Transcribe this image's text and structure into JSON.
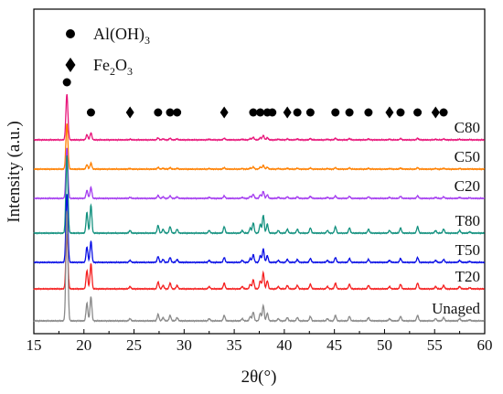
{
  "chart_data": {
    "type": "line",
    "xlabel": "2θ(°)",
    "ylabel": "Intensity (a.u.)",
    "xlim": [
      15,
      60
    ],
    "xticks": [
      15,
      20,
      25,
      30,
      35,
      40,
      45,
      50,
      55,
      60
    ],
    "y_tick_labels": "none",
    "grid": false,
    "legend": {
      "placement": "top-left",
      "entries": [
        {
          "marker": "circle",
          "label": "Al(OH)",
          "sub": "3"
        },
        {
          "marker": "diamond",
          "label": "Fe",
          "sub1": "2",
          "mid": "O",
          "sub2": "3"
        }
      ]
    },
    "marker_row": {
      "circle_2theta": [
        18.3,
        20.7,
        27.4,
        28.6,
        29.3,
        36.9,
        37.6,
        38.3,
        38.8,
        41.3,
        42.6,
        45.1,
        46.5,
        48.4,
        51.6,
        53.3,
        55.9
      ],
      "diamond_2theta": [
        24.6,
        34.0,
        40.3,
        50.5,
        55.1
      ]
    },
    "series": [
      {
        "name": "C80",
        "color": "#e8157a",
        "baseline": 153
      },
      {
        "name": "C50",
        "color": "#ff8000",
        "baseline": 185
      },
      {
        "name": "C20",
        "color": "#a53df0",
        "baseline": 217
      },
      {
        "name": "T80",
        "color": "#13917f",
        "baseline": 255
      },
      {
        "name": "T50",
        "color": "#0a10e6",
        "baseline": 287
      },
      {
        "name": "T20",
        "color": "#f52020",
        "baseline": 316
      },
      {
        "name": "Unaged",
        "color": "#8a8a8a",
        "baseline": 351
      }
    ],
    "peaks_2theta": [
      18.3,
      20.3,
      20.7,
      24.6,
      27.4,
      27.9,
      28.6,
      29.3,
      32.5,
      34.0,
      35.8,
      36.6,
      36.9,
      37.6,
      37.9,
      38.3,
      39.4,
      40.3,
      41.3,
      42.6,
      44.3,
      45.1,
      46.5,
      48.4,
      50.5,
      51.6,
      53.3,
      55.1,
      55.9,
      57.5,
      58.5
    ]
  }
}
